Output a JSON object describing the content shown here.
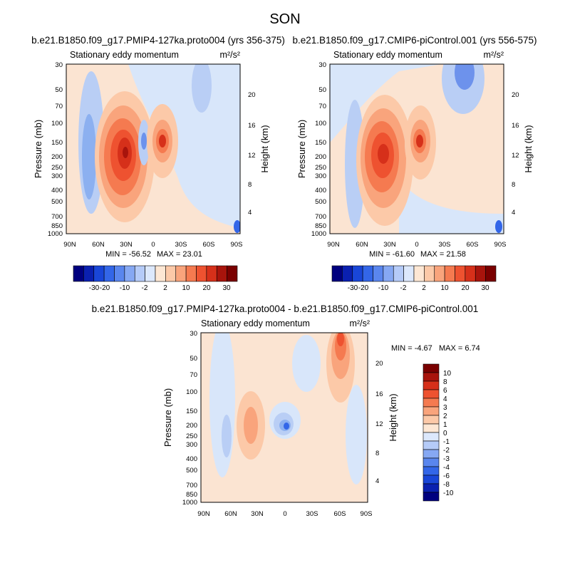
{
  "figure": {
    "title": "SON"
  },
  "chart_data": [
    {
      "type": "heatmap",
      "title": "b.e21.B1850.f09_g17.PMIP4-127ka.proto004 (yrs 356-375)",
      "variable_label": "Stationary eddy momentum",
      "units": "m²/s²",
      "x_ticks": [
        "90N",
        "60N",
        "30N",
        "0",
        "30S",
        "60S",
        "90S"
      ],
      "y_ticks": [
        "30",
        "50",
        "70",
        "100",
        "150",
        "200",
        "250",
        "300",
        "400",
        "500",
        "700",
        "850",
        "1000"
      ],
      "ylabel": "Pressure (mb)",
      "ylabel_right": "Height (km)",
      "height_ticks": [
        "20",
        "16",
        "12",
        "8",
        "4"
      ],
      "min_label": "MIN = -56.52",
      "max_label": "MAX = 23.01",
      "min": -56.52,
      "max": 23.01,
      "colorbar_labels": [
        "-30",
        "-20",
        "-10",
        "-2",
        "2",
        "10",
        "20",
        "30"
      ],
      "features": [
        {
          "lat": 33,
          "p": 200,
          "value": -56.52
        },
        {
          "lat": -3,
          "p": 150,
          "value": 23.01
        },
        {
          "lat": 13,
          "p": 150,
          "value": -12
        }
      ]
    },
    {
      "type": "heatmap",
      "title": "b.e21.B1850.f09_g17.CMIP6-piControl.001 (yrs 556-575)",
      "variable_label": "Stationary eddy momentum",
      "units": "m²/s²",
      "x_ticks": [
        "90N",
        "60N",
        "30N",
        "0",
        "30S",
        "60S",
        "90S"
      ],
      "y_ticks": [
        "30",
        "50",
        "70",
        "100",
        "150",
        "200",
        "250",
        "300",
        "400",
        "500",
        "700",
        "850",
        "1000"
      ],
      "ylabel": "Pressure (mb)",
      "ylabel_right": "Height (km)",
      "height_ticks": [
        "20",
        "16",
        "12",
        "8",
        "4"
      ],
      "min_label": "MIN = -61.60",
      "max_label": "MAX = 21.58",
      "min": -61.6,
      "max": 21.58,
      "colorbar_labels": [
        "-30",
        "-20",
        "-10",
        "-2",
        "2",
        "10",
        "20",
        "30"
      ],
      "features": [
        {
          "lat": 33,
          "p": 200,
          "value": -61.6
        },
        {
          "lat": -3,
          "p": 150,
          "value": 21.58
        },
        {
          "lat": -60,
          "p": 30,
          "value": -15
        }
      ]
    },
    {
      "type": "heatmap",
      "title": "b.e21.B1850.f09_g17.PMIP4-127ka.proto004 - b.e21.B1850.f09_g17.CMIP6-piControl.001",
      "variable_label": "Stationary eddy momentum",
      "units": "m²/s²",
      "x_ticks": [
        "90N",
        "60N",
        "30N",
        "0",
        "30S",
        "60S",
        "90S"
      ],
      "y_ticks": [
        "30",
        "50",
        "70",
        "100",
        "150",
        "200",
        "250",
        "300",
        "400",
        "500",
        "700",
        "850",
        "1000"
      ],
      "ylabel": "Pressure (mb)",
      "ylabel_right": "Height (km)",
      "height_ticks": [
        "20",
        "16",
        "12",
        "8",
        "4"
      ],
      "min_label": "MIN =  -4.67",
      "max_label": "MAX =   6.74",
      "min": -4.67,
      "max": 6.74,
      "colorbar_labels": [
        "10",
        "8",
        "6",
        "4",
        "3",
        "2",
        "1",
        "0",
        "-1",
        "-2",
        "-3",
        "-4",
        "-6",
        "-8",
        "-10"
      ],
      "features": [
        {
          "lat": 0,
          "p": 200,
          "value": -4.67
        },
        {
          "lat": -60,
          "p": 30,
          "value": 6.74
        },
        {
          "lat": 45,
          "p": 250,
          "value": 2
        }
      ]
    }
  ],
  "palette": {
    "diverging": [
      "#00007f",
      "#0a20b0",
      "#1946d8",
      "#3366e8",
      "#5a86ee",
      "#86a8f3",
      "#b5cbf8",
      "#dce8fc",
      "#fde7d4",
      "#fcc9a8",
      "#f9a47c",
      "#f57a50",
      "#ee5230",
      "#d6301a",
      "#a8140c",
      "#7a0000"
    ],
    "neutral_pos": "#fbe4d2",
    "neutral_neg": "#d6e6fb"
  }
}
